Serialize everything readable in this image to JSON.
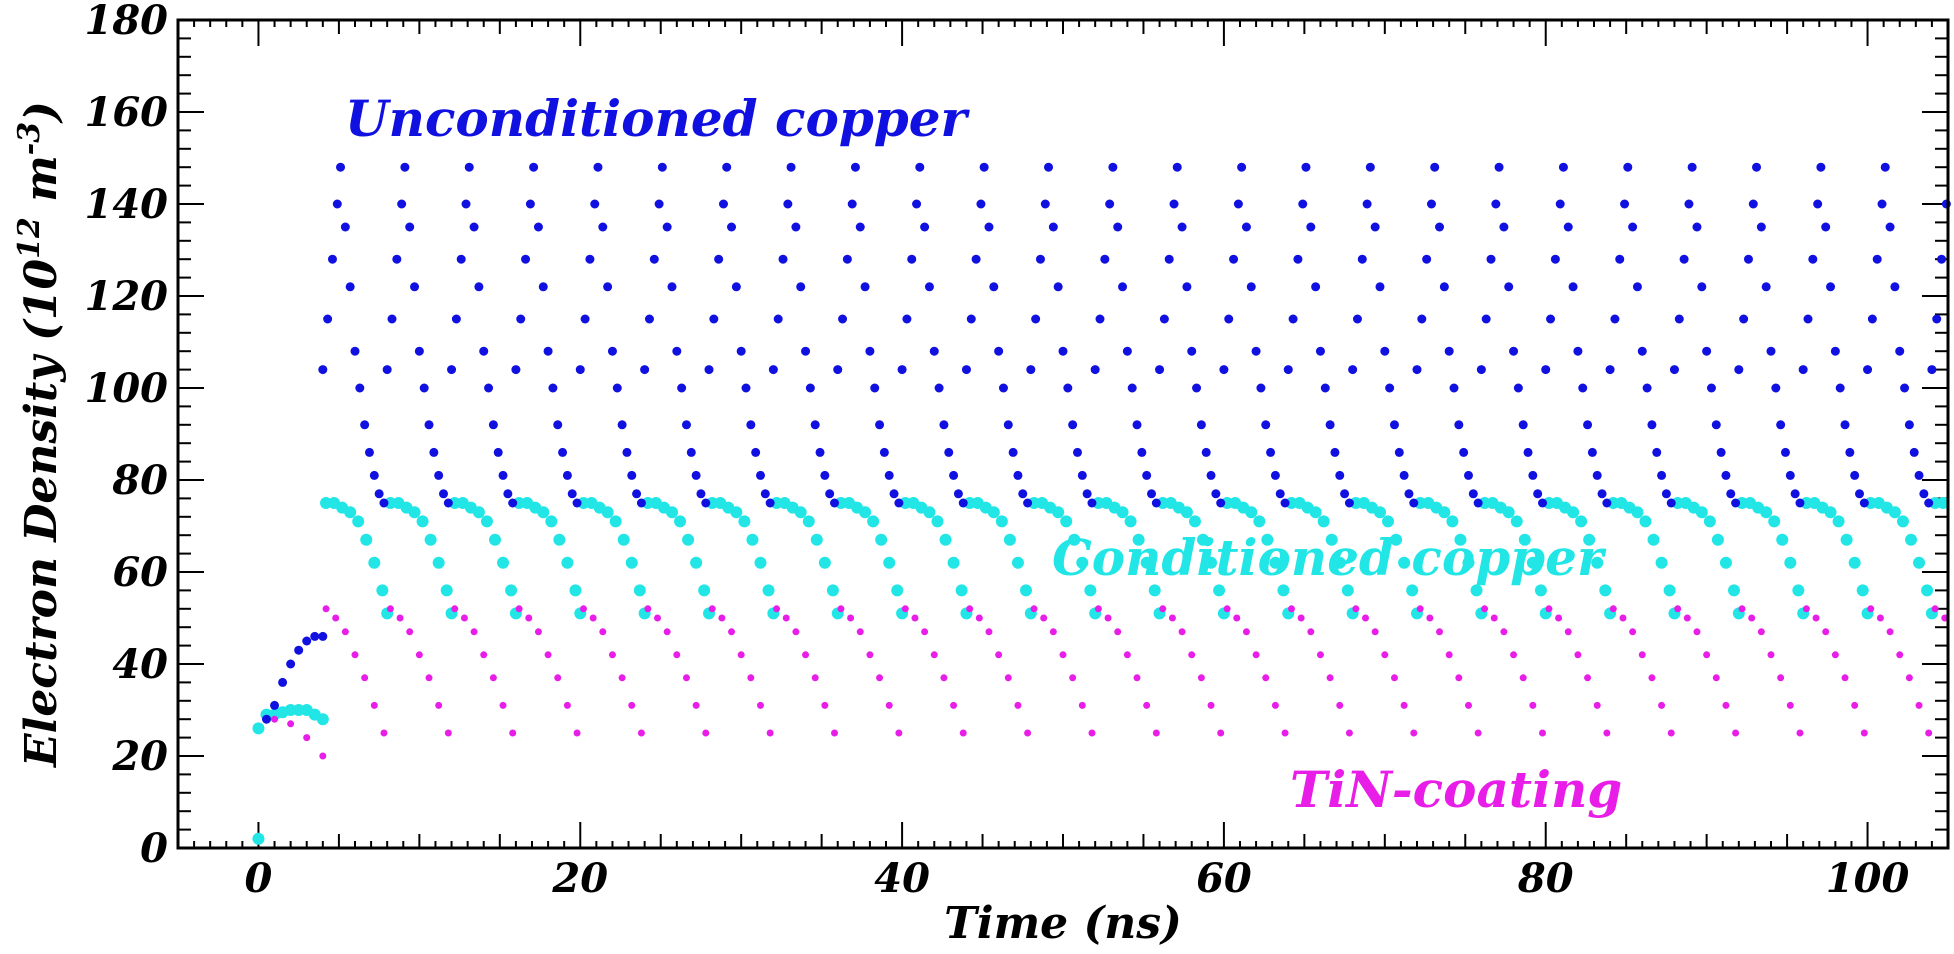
{
  "chart_data": {
    "type": "scatter",
    "title": "",
    "xlabel": "Time (ns)",
    "ylabel_parts": {
      "main": "Electron Density (10",
      "exp1": "12",
      "mid": " m",
      "exp2": "-3",
      "close": ")"
    },
    "xlim": [
      -5,
      105
    ],
    "ylim": [
      0,
      180
    ],
    "x_ticks": [
      0,
      20,
      40,
      60,
      80,
      100
    ],
    "x_tick_labels": [
      "0",
      "20",
      "40",
      "60",
      "80",
      "100"
    ],
    "y_ticks": [
      0,
      20,
      40,
      60,
      80,
      100,
      120,
      140,
      160,
      180
    ],
    "y_tick_labels": [
      "0",
      "20",
      "40",
      "60",
      "80",
      "100",
      "120",
      "140",
      "160",
      "180"
    ],
    "bunch_spacing_ns": 4,
    "series": [
      {
        "name": "Unconditioned copper",
        "color": "#1010e0",
        "initial_rise": [
          [
            0.5,
            28
          ],
          [
            1.0,
            31
          ],
          [
            1.5,
            36
          ],
          [
            2.0,
            40
          ],
          [
            2.5,
            43
          ],
          [
            3.0,
            45
          ],
          [
            3.5,
            46
          ],
          [
            4.0,
            46
          ]
        ],
        "typical_cycle": [
          [
            0.0,
            104
          ],
          [
            0.3,
            115
          ],
          [
            0.6,
            128
          ],
          [
            0.9,
            140
          ],
          [
            1.1,
            148
          ],
          [
            1.4,
            135
          ],
          [
            1.7,
            122
          ],
          [
            2.0,
            108
          ],
          [
            2.3,
            100
          ],
          [
            2.6,
            92
          ],
          [
            2.9,
            86
          ],
          [
            3.2,
            81
          ],
          [
            3.5,
            77
          ],
          [
            3.8,
            75
          ]
        ],
        "cycle_peak": 149,
        "cycle_trough": 75,
        "label_text": "Unconditioned copper"
      },
      {
        "name": "Conditioned copper",
        "color": "#22e6e6",
        "initial_plateau": [
          [
            0.0,
            26
          ],
          [
            0.5,
            29
          ],
          [
            1.0,
            29
          ],
          [
            1.5,
            29.5
          ],
          [
            2.0,
            30
          ],
          [
            2.5,
            30
          ],
          [
            3.0,
            30
          ],
          [
            3.5,
            29
          ],
          [
            4.0,
            28
          ]
        ],
        "typical_cycle": [
          [
            0.0,
            75
          ],
          [
            0.5,
            75
          ],
          [
            1.0,
            74
          ],
          [
            1.5,
            73
          ],
          [
            2.0,
            71
          ],
          [
            2.5,
            67
          ],
          [
            3.0,
            62
          ],
          [
            3.5,
            56
          ],
          [
            3.8,
            51
          ]
        ],
        "cycle_peak": 76,
        "cycle_trough": 50,
        "label_text": "Conditioned copper"
      },
      {
        "name": "TiN-coating",
        "color": "#e81ee8",
        "initial_decay": [
          [
            1.0,
            28
          ],
          [
            2.0,
            27
          ],
          [
            3.0,
            24
          ],
          [
            4.0,
            20
          ]
        ],
        "typical_cycle": [
          [
            0.2,
            52
          ],
          [
            0.8,
            50
          ],
          [
            1.4,
            47
          ],
          [
            2.0,
            42
          ],
          [
            2.6,
            37
          ],
          [
            3.2,
            31
          ],
          [
            3.8,
            25
          ]
        ],
        "cycle_peak": 52,
        "cycle_trough": 24,
        "label_text": "TiN-coating"
      }
    ],
    "legend": "inline labels: top-left, center-right, bottom-right",
    "grid": false
  }
}
